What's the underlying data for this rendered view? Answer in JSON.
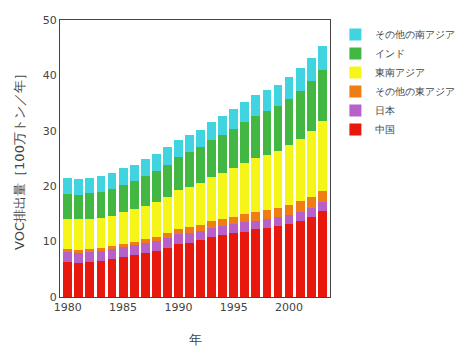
{
  "chart_data": {
    "type": "bar",
    "stacked": true,
    "x": [
      1980,
      1981,
      1982,
      1983,
      1984,
      1985,
      1986,
      1987,
      1988,
      1989,
      1990,
      1991,
      1992,
      1993,
      1994,
      1995,
      1996,
      1997,
      1998,
      1999,
      2000,
      2001,
      2002,
      2003
    ],
    "series": [
      {
        "name": "中国",
        "color": "#e8190c",
        "values": [
          6.3,
          6.2,
          6.3,
          6.5,
          6.8,
          7.2,
          7.5,
          7.9,
          8.3,
          8.8,
          9.5,
          9.8,
          10.2,
          10.8,
          11.2,
          11.5,
          11.8,
          12.2,
          12.5,
          12.8,
          13.2,
          13.8,
          14.5,
          15.5
        ]
      },
      {
        "name": "日本",
        "color": "#b660c8",
        "values": [
          1.8,
          1.8,
          1.8,
          1.8,
          1.8,
          1.8,
          1.8,
          1.8,
          1.8,
          1.8,
          1.8,
          1.8,
          1.7,
          1.7,
          1.7,
          1.7,
          1.7,
          1.6,
          1.6,
          1.6,
          1.6,
          1.6,
          1.6,
          1.6
        ]
      },
      {
        "name": "その他の東アジア",
        "color": "#f07d14",
        "values": [
          0.5,
          0.5,
          0.5,
          0.5,
          0.6,
          0.6,
          0.7,
          0.8,
          0.8,
          0.9,
          1.0,
          1.0,
          1.1,
          1.2,
          1.2,
          1.3,
          1.4,
          1.5,
          1.6,
          1.7,
          1.8,
          1.9,
          2.0,
          2.1
        ]
      },
      {
        "name": "東南アジア",
        "color": "#f5f518",
        "values": [
          5.5,
          5.5,
          5.5,
          5.5,
          5.5,
          5.7,
          5.8,
          6.0,
          6.3,
          6.6,
          7.0,
          7.3,
          7.6,
          8.0,
          8.3,
          8.8,
          9.3,
          9.8,
          10.0,
          10.3,
          10.8,
          11.3,
          11.8,
          12.5
        ]
      },
      {
        "name": "インド",
        "color": "#42b842",
        "values": [
          4.5,
          4.5,
          4.6,
          4.7,
          4.8,
          5.0,
          5.2,
          5.4,
          5.6,
          5.8,
          6.0,
          6.2,
          6.4,
          6.6,
          6.8,
          7.0,
          7.3,
          7.6,
          7.8,
          8.0,
          8.3,
          8.6,
          9.0,
          9.3
        ]
      },
      {
        "name": "その他の南アジア",
        "color": "#40d4e0",
        "values": [
          2.8,
          2.8,
          2.8,
          2.8,
          2.9,
          2.9,
          2.9,
          3.0,
          3.0,
          3.1,
          3.1,
          3.2,
          3.2,
          3.3,
          3.5,
          3.6,
          3.7,
          3.8,
          3.8,
          3.9,
          4.0,
          4.1,
          4.2,
          4.3
        ]
      }
    ],
    "xlabel": "年",
    "ylabel": "VOC排出量［100万トン／年］",
    "xlim": [
      1979.3,
      2003.7
    ],
    "xticks": [
      1980,
      1985,
      1990,
      1995,
      2000
    ],
    "ylim": [
      0,
      50
    ],
    "yticks": [
      0,
      10,
      20,
      30,
      40,
      50
    ],
    "grid": false,
    "legend": "right"
  }
}
